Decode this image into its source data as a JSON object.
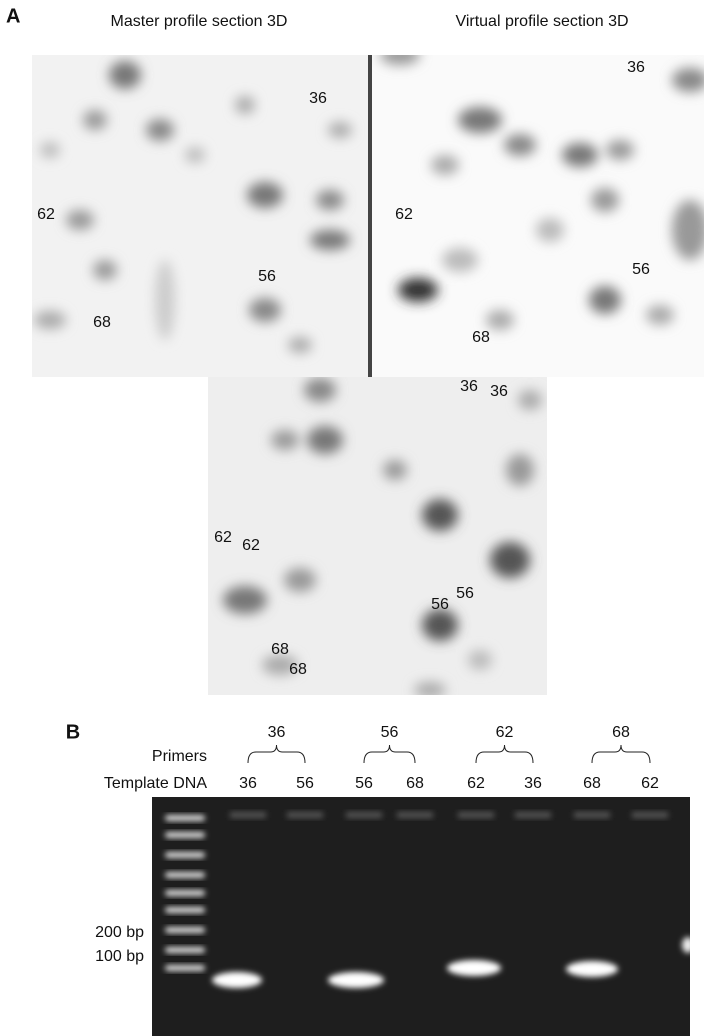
{
  "panel_a": {
    "label": "A",
    "master": {
      "title": "Master profile section 3D",
      "spot_labels": [
        "36",
        "62",
        "56",
        "68"
      ]
    },
    "virtual": {
      "title": "Virtual profile section 3D",
      "spot_labels": [
        "36",
        "62",
        "56",
        "68"
      ]
    },
    "overlay": {
      "spot_labels": [
        "36",
        "36",
        "62",
        "62",
        "56",
        "56",
        "68",
        "68"
      ]
    }
  },
  "panel_b": {
    "label": "B",
    "primers_label": "Primers",
    "template_label": "Template DNA",
    "primers": [
      "36",
      "56",
      "62",
      "68"
    ],
    "templates": [
      "36",
      "56",
      "56",
      "68",
      "62",
      "36",
      "68",
      "62"
    ],
    "markers": [
      "200 bp",
      "100 bp"
    ]
  }
}
